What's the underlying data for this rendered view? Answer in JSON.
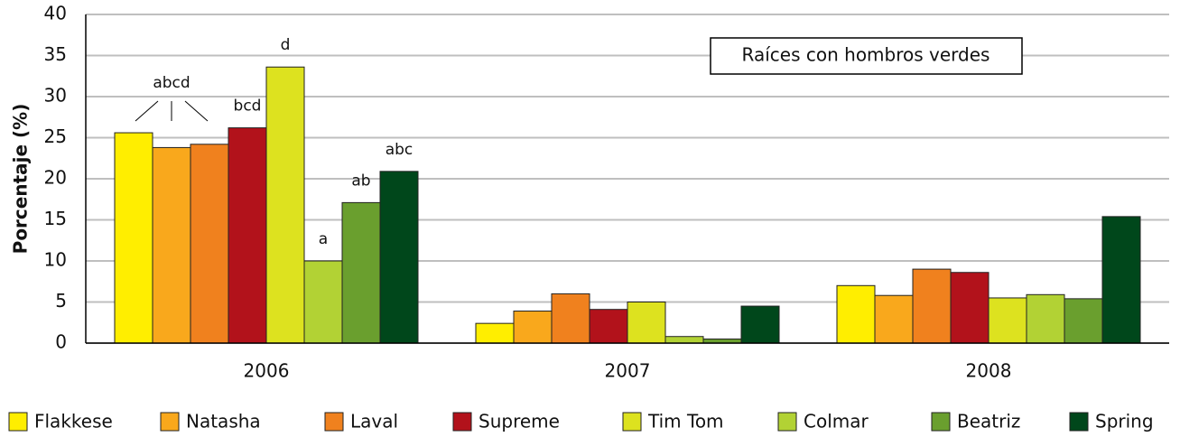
{
  "chart_data": {
    "type": "bar",
    "y_label": "Porcentaje (%)",
    "annotation": "Raíces con hombros verdes",
    "categories": [
      "2006",
      "2007",
      "2008"
    ],
    "series": [
      {
        "name": "Flakkese",
        "color": "#ffee00",
        "values": [
          25.6,
          2.4,
          7.0
        ],
        "letters": [
          null,
          null,
          null
        ]
      },
      {
        "name": "Natasha",
        "color": "#f9a81c",
        "values": [
          23.8,
          3.9,
          5.8
        ],
        "letters": [
          "abcd",
          null,
          null
        ]
      },
      {
        "name": "Laval",
        "color": "#f0811e",
        "values": [
          24.2,
          6.0,
          9.0
        ],
        "letters": [
          null,
          null,
          null
        ]
      },
      {
        "name": "Supreme",
        "color": "#b2121b",
        "values": [
          26.2,
          4.1,
          8.6
        ],
        "letters": [
          "bcd",
          null,
          null
        ]
      },
      {
        "name": "Tim Tom",
        "color": "#dde21f",
        "values": [
          33.6,
          5.0,
          5.5
        ],
        "letters": [
          "d",
          null,
          null
        ]
      },
      {
        "name": "Colmar",
        "color": "#b2d234",
        "values": [
          10.0,
          0.8,
          5.9
        ],
        "letters": [
          "a",
          null,
          null
        ]
      },
      {
        "name": "Beatriz",
        "color": "#6a9f2e",
        "values": [
          17.1,
          0.5,
          5.4
        ],
        "letters": [
          "ab",
          null,
          null
        ]
      },
      {
        "name": "Spring",
        "color": "#00471b",
        "values": [
          20.9,
          4.5,
          15.4
        ],
        "letters": [
          "abc",
          null,
          null
        ]
      }
    ],
    "ylim": [
      0,
      40
    ],
    "yticks": [
      0,
      5,
      10,
      15,
      20,
      25,
      30,
      35,
      40
    ],
    "grid": true,
    "legend": "bottom"
  }
}
